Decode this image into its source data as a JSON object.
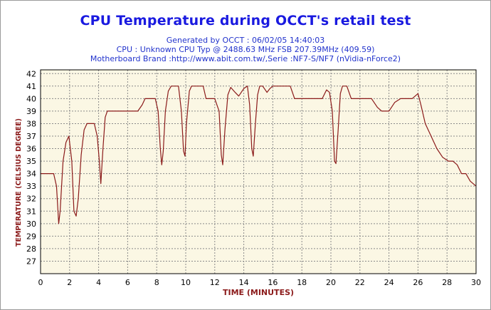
{
  "title": "CPU Temperature during OCCT's retail test",
  "subtitles": [
    "Generated by OCCT : 06/02/05 14:40:03",
    "CPU : Unknown CPU Typ @ 2488.63 MHz FSB 207.39MHz (409.59)",
    "Motherboard Brand :http://www.abit.com.tw/,Serie :NF7-S/NF7 (nVidia-nForce2)"
  ],
  "colors": {
    "title": "#1a1ae0",
    "subtitle": "#2233cc",
    "axis_label": "#8b1a1a",
    "series": "#8b1a1a",
    "plot_bg": "#fbf7e4",
    "grid": "#8a8a8a"
  },
  "chart_data": {
    "type": "line",
    "xlabel": "TIME (MINUTES)",
    "ylabel": "TEMPERATURE (CELSIUS DEGREE)",
    "xlim": [
      0,
      30
    ],
    "ylim": [
      26,
      42.3
    ],
    "xticks": [
      "0",
      "2",
      "4",
      "6",
      "8",
      "10",
      "12",
      "14",
      "16",
      "18",
      "20",
      "22",
      "24",
      "26",
      "28",
      "30"
    ],
    "yticks": [
      "27",
      "28",
      "29",
      "30",
      "31",
      "32",
      "33",
      "34",
      "35",
      "36",
      "37",
      "38",
      "39",
      "40",
      "41",
      "42"
    ],
    "grid": true,
    "series": [
      {
        "values": [
          [
            0,
            34
          ],
          [
            0.9,
            34
          ],
          [
            1.1,
            33
          ],
          [
            1.25,
            30
          ],
          [
            1.35,
            31
          ],
          [
            1.55,
            35
          ],
          [
            1.75,
            36.5
          ],
          [
            1.95,
            37
          ],
          [
            2.15,
            35
          ],
          [
            2.3,
            31
          ],
          [
            2.45,
            30.6
          ],
          [
            2.6,
            32
          ],
          [
            2.8,
            35.5
          ],
          [
            3.0,
            37.5
          ],
          [
            3.2,
            38
          ],
          [
            3.7,
            38
          ],
          [
            3.9,
            37
          ],
          [
            4.05,
            35
          ],
          [
            4.15,
            33.2
          ],
          [
            4.3,
            36
          ],
          [
            4.45,
            38.5
          ],
          [
            4.6,
            39
          ],
          [
            5.0,
            39
          ],
          [
            6.7,
            39
          ],
          [
            7.0,
            39.5
          ],
          [
            7.2,
            40
          ],
          [
            7.9,
            40
          ],
          [
            8.1,
            39
          ],
          [
            8.25,
            36
          ],
          [
            8.35,
            34.7
          ],
          [
            8.45,
            35.8
          ],
          [
            8.6,
            39
          ],
          [
            8.8,
            40.6
          ],
          [
            9.0,
            41
          ],
          [
            9.5,
            41
          ],
          [
            9.7,
            39
          ],
          [
            9.85,
            35.8
          ],
          [
            9.95,
            35.4
          ],
          [
            10.05,
            38
          ],
          [
            10.25,
            40.6
          ],
          [
            10.4,
            41
          ],
          [
            11.2,
            41
          ],
          [
            11.4,
            40
          ],
          [
            12.0,
            40
          ],
          [
            12.3,
            39
          ],
          [
            12.45,
            35.5
          ],
          [
            12.55,
            34.7
          ],
          [
            12.7,
            37.5
          ],
          [
            12.9,
            40.3
          ],
          [
            13.1,
            40.9
          ],
          [
            13.4,
            40.5
          ],
          [
            13.65,
            40.2
          ],
          [
            14.0,
            40.8
          ],
          [
            14.25,
            41
          ],
          [
            14.4,
            39.5
          ],
          [
            14.55,
            36
          ],
          [
            14.65,
            35.4
          ],
          [
            14.8,
            38
          ],
          [
            14.95,
            40.3
          ],
          [
            15.1,
            41
          ],
          [
            15.3,
            41
          ],
          [
            15.6,
            40.5
          ],
          [
            15.8,
            40.8
          ],
          [
            16.0,
            41
          ],
          [
            17.2,
            41
          ],
          [
            17.5,
            40
          ],
          [
            19.4,
            40
          ],
          [
            19.7,
            40.7
          ],
          [
            19.9,
            40.5
          ],
          [
            20.1,
            39
          ],
          [
            20.25,
            35
          ],
          [
            20.35,
            34.8
          ],
          [
            20.5,
            37.5
          ],
          [
            20.65,
            40.4
          ],
          [
            20.8,
            41
          ],
          [
            21.1,
            41
          ],
          [
            21.4,
            40
          ],
          [
            22.8,
            40
          ],
          [
            23.2,
            39.3
          ],
          [
            23.5,
            39
          ],
          [
            24.0,
            39
          ],
          [
            24.4,
            39.7
          ],
          [
            24.8,
            40
          ],
          [
            25.6,
            40
          ],
          [
            26.0,
            40.4
          ],
          [
            26.2,
            39.5
          ],
          [
            26.5,
            38
          ],
          [
            26.9,
            37
          ],
          [
            27.3,
            36
          ],
          [
            27.7,
            35.3
          ],
          [
            28.1,
            35
          ],
          [
            28.4,
            35
          ],
          [
            28.7,
            34.7
          ],
          [
            29.0,
            34
          ],
          [
            29.3,
            34
          ],
          [
            29.6,
            33.4
          ],
          [
            30.0,
            33
          ]
        ]
      }
    ]
  }
}
